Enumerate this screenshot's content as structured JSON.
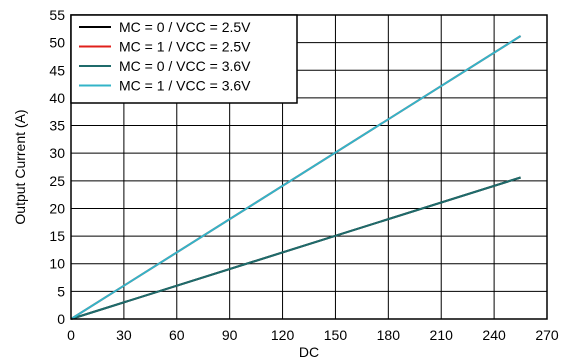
{
  "chart_data": {
    "type": "line",
    "title": "",
    "xlabel": "DC",
    "ylabel": "Output Current (A)",
    "xlim": [
      0,
      270
    ],
    "ylim": [
      0,
      55
    ],
    "xticks": [
      0,
      30,
      60,
      90,
      120,
      150,
      180,
      210,
      240,
      270
    ],
    "yticks": [
      0,
      5,
      10,
      15,
      20,
      25,
      30,
      35,
      40,
      45,
      50,
      55
    ],
    "grid": true,
    "legend_position": "top-left",
    "series": [
      {
        "name": "MC = 0 / VCC = 2.5V",
        "color": "#000000",
        "x": [
          0,
          255
        ],
        "y": [
          0,
          25.6
        ]
      },
      {
        "name": "MC = 1 / VCC = 2.5V",
        "color": "#e0201b",
        "x": [
          0,
          255
        ],
        "y": [
          0,
          51.2
        ]
      },
      {
        "name": "MC = 0 / VCC = 3.6V",
        "color": "#1f6b6b",
        "x": [
          0,
          255
        ],
        "y": [
          0,
          25.6
        ]
      },
      {
        "name": "MC = 1 / VCC = 3.6V",
        "color": "#33b4c8",
        "x": [
          0,
          255
        ],
        "y": [
          0,
          51.2
        ]
      }
    ]
  }
}
